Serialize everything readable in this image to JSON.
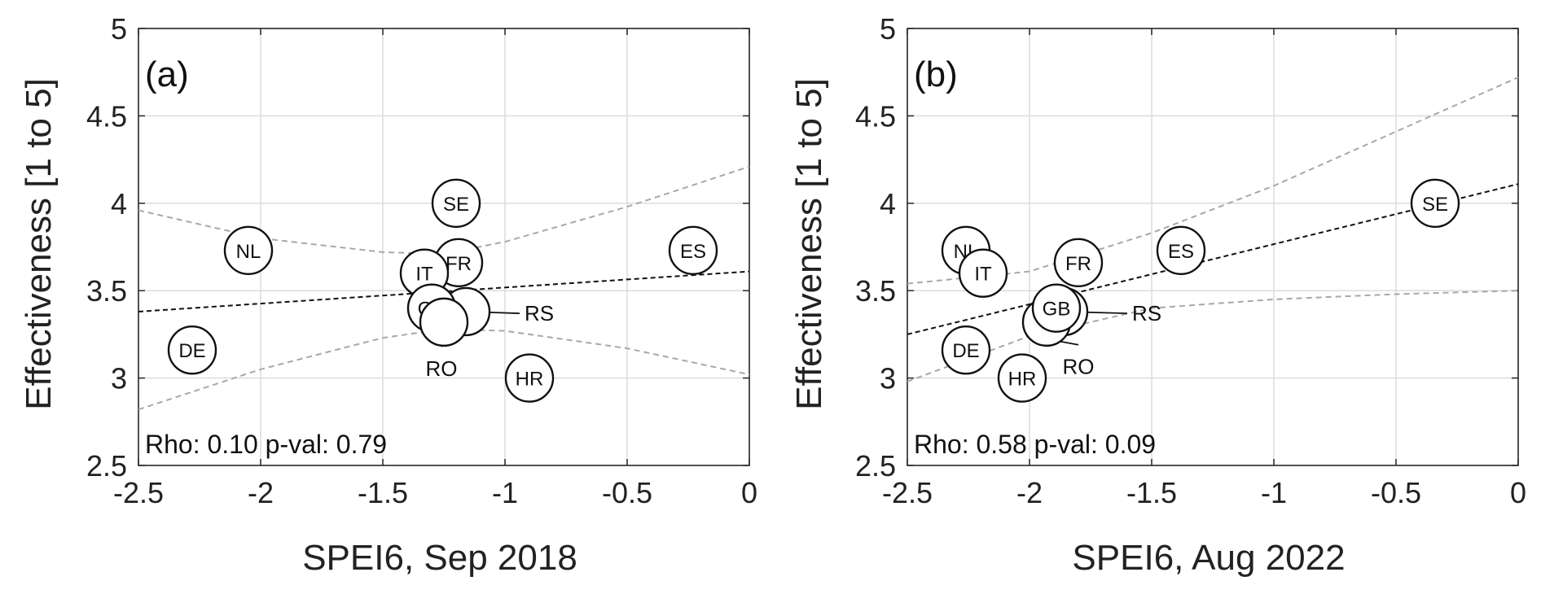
{
  "chart_data": [
    {
      "type": "scatter",
      "panel_label": "(a)",
      "xlabel": "SPEI6, Sep 2018",
      "ylabel": "Effectiveness [1 to 5]",
      "xlim": [
        -2.5,
        0
      ],
      "ylim": [
        2.5,
        5
      ],
      "xticks": [
        -2.5,
        -2,
        -1.5,
        -1,
        -0.5,
        0
      ],
      "xtick_labels": [
        "-2.5",
        "-2",
        "-1.5",
        "-1",
        "-0.5",
        "0"
      ],
      "yticks": [
        2.5,
        3,
        3.5,
        4,
        4.5,
        5
      ],
      "ytick_labels": [
        "2.5",
        "3",
        "3.5",
        "4",
        "4.5",
        "5"
      ],
      "grid": true,
      "annotation": "Rho: 0.10 p-val: 0.79",
      "points": [
        {
          "label": "NL",
          "x": -2.05,
          "y": 3.73
        },
        {
          "label": "DE",
          "x": -2.28,
          "y": 3.16
        },
        {
          "label": "SE",
          "x": -1.2,
          "y": 4.0
        },
        {
          "label": "FR",
          "x": -1.19,
          "y": 3.66
        },
        {
          "label": "IT",
          "x": -1.33,
          "y": 3.6
        },
        {
          "label": "RS",
          "x": -1.16,
          "y": 3.38,
          "callout": {
            "x": -0.92,
            "y": 3.37
          }
        },
        {
          "label": "GB",
          "x": -1.3,
          "y": 3.4
        },
        {
          "label": "RO",
          "x": -1.25,
          "y": 3.32,
          "callout": {
            "x": -1.26,
            "y": 3.05
          }
        },
        {
          "label": "HR",
          "x": -0.9,
          "y": 3.0
        },
        {
          "label": "ES",
          "x": -0.23,
          "y": 3.73
        }
      ],
      "fit_line": {
        "x": [
          -2.5,
          0
        ],
        "y": [
          3.38,
          3.61
        ]
      },
      "ci_upper": {
        "x": [
          -2.5,
          -2.0,
          -1.5,
          -1.25,
          -1.0,
          -0.5,
          0
        ],
        "y": [
          3.96,
          3.8,
          3.72,
          3.71,
          3.78,
          3.98,
          4.21
        ]
      },
      "ci_lower": {
        "x": [
          -2.5,
          -2.0,
          -1.5,
          -1.25,
          -1.0,
          -0.5,
          0
        ],
        "y": [
          2.82,
          3.05,
          3.23,
          3.28,
          3.27,
          3.17,
          3.02
        ]
      }
    },
    {
      "type": "scatter",
      "panel_label": "(b)",
      "xlabel": "SPEI6, Aug 2022",
      "ylabel": "Effectiveness [1 to 5]",
      "xlim": [
        -2.5,
        0
      ],
      "ylim": [
        2.5,
        5
      ],
      "xticks": [
        -2.5,
        -2,
        -1.5,
        -1,
        -0.5,
        0
      ],
      "xtick_labels": [
        "-2.5",
        "-2",
        "-1.5",
        "-1",
        "-0.5",
        "0"
      ],
      "yticks": [
        2.5,
        3,
        3.5,
        4,
        4.5,
        5
      ],
      "ytick_labels": [
        "2.5",
        "3",
        "3.5",
        "4",
        "4.5",
        "5"
      ],
      "grid": true,
      "annotation": "Rho: 0.58 p-val: 0.09",
      "points": [
        {
          "label": "NL",
          "x": -2.26,
          "y": 3.73
        },
        {
          "label": "IT",
          "x": -2.19,
          "y": 3.6
        },
        {
          "label": "DE",
          "x": -2.26,
          "y": 3.16
        },
        {
          "label": "HR",
          "x": -2.03,
          "y": 3.0
        },
        {
          "label": "FR",
          "x": -1.8,
          "y": 3.66
        },
        {
          "label": "ES",
          "x": -1.38,
          "y": 3.73
        },
        {
          "label": "RS",
          "x": -1.86,
          "y": 3.38,
          "callout": {
            "x": -1.58,
            "y": 3.37
          }
        },
        {
          "label": "RO",
          "x": -1.93,
          "y": 3.32,
          "callout": {
            "x": -1.8,
            "y": 3.06
          }
        },
        {
          "label": "GB",
          "x": -1.89,
          "y": 3.4
        },
        {
          "label": "SE",
          "x": -0.34,
          "y": 4.0
        }
      ],
      "fit_line": {
        "x": [
          -2.5,
          0
        ],
        "y": [
          3.25,
          4.11
        ]
      },
      "ci_upper": {
        "x": [
          -2.5,
          -2.0,
          -1.5,
          -1.0,
          -0.5,
          0
        ],
        "y": [
          3.54,
          3.61,
          3.83,
          4.1,
          4.41,
          4.72
        ]
      },
      "ci_lower": {
        "x": [
          -2.5,
          -2.0,
          -1.5,
          -1.0,
          -0.5,
          0
        ],
        "y": [
          2.98,
          3.24,
          3.4,
          3.45,
          3.48,
          3.5
        ]
      }
    }
  ]
}
